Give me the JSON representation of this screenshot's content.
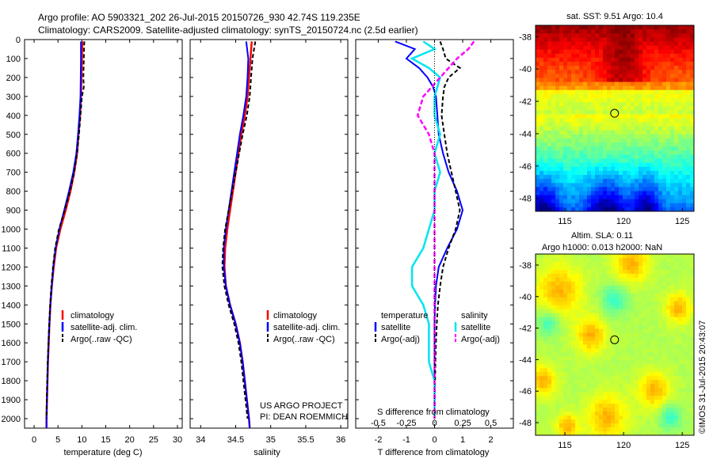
{
  "title": {
    "line1": "Argo profile: AO 5903321_202 26-Jul-2015 20150726_930 42.74S 119.235E",
    "line2": "Climatology: CARS2009. Satellite-adjusted climatology: synTS_20150724.nc (2.5d earlier)"
  },
  "credit_vertical": "©IMOS 31-Jul-2015 20:43:07",
  "project": {
    "line1": "US ARGO PROJECT",
    "line2": "PI: DEAN ROEMMICH"
  },
  "colors": {
    "clim": "#ff0000",
    "sat": "#0000ff",
    "argo": "#000000",
    "sal_sat": "#00e5ee",
    "sal_argo": "#ff00ff"
  },
  "chart_data": [
    {
      "type": "line",
      "xlabel": "temperature (deg C)",
      "ylim": [
        2050,
        0
      ],
      "xlim": [
        -2,
        31
      ],
      "xticks": [
        "0",
        "5",
        "10",
        "15",
        "20",
        "25",
        "30"
      ],
      "yticks": [
        "0",
        "100",
        "200",
        "300",
        "400",
        "500",
        "600",
        "700",
        "800",
        "900",
        "1000",
        "1100",
        "1200",
        "1300",
        "1400",
        "1500",
        "1600",
        "1700",
        "1800",
        "1900",
        "2000"
      ],
      "legend": [
        "climatology",
        "satellite-adj. clim.",
        "Argo(..raw -QC)"
      ],
      "series": [
        {
          "name": "climatology",
          "depth": [
            10,
            100,
            200,
            300,
            400,
            500,
            600,
            700,
            800,
            900,
            1000,
            1100,
            1200,
            1300,
            1400,
            1500,
            1600,
            1700,
            1800,
            1900,
            2000,
            2050
          ],
          "values": [
            10.1,
            10.0,
            9.9,
            9.8,
            9.6,
            9.3,
            9.0,
            8.4,
            7.6,
            6.6,
            5.5,
            4.6,
            4.1,
            3.7,
            3.4,
            3.2,
            3.05,
            2.9,
            2.8,
            2.7,
            2.6,
            2.6
          ]
        },
        {
          "name": "satellite-adj. clim.",
          "depth": [
            10,
            100,
            200,
            300,
            400,
            500,
            600,
            700,
            800,
            900,
            1000,
            1100,
            1200,
            1300,
            1400,
            1500,
            1600,
            1700,
            1800,
            1900,
            2000,
            2050
          ],
          "values": [
            9.8,
            9.8,
            9.75,
            9.7,
            9.5,
            9.2,
            8.85,
            8.2,
            7.3,
            6.3,
            5.3,
            4.5,
            4.0,
            3.7,
            3.4,
            3.2,
            3.0,
            2.9,
            2.8,
            2.7,
            2.6,
            2.6
          ]
        },
        {
          "name": "Argo(..raw -QC)",
          "depth": [
            10,
            100,
            200,
            250,
            300,
            400,
            500,
            600,
            700,
            800,
            900,
            1000,
            1100,
            1200,
            1300,
            1400,
            1500,
            1600,
            1700,
            1800,
            1900,
            2000
          ],
          "values": [
            10.5,
            10.4,
            10.3,
            10.4,
            10.0,
            9.7,
            9.4,
            9.0,
            8.4,
            7.5,
            6.4,
            5.2,
            4.4,
            3.95,
            3.6,
            3.35,
            3.15,
            3.0,
            2.85,
            2.75,
            2.65,
            2.6
          ]
        }
      ]
    },
    {
      "type": "line",
      "xlabel": "salinity",
      "ylim": [
        2050,
        0
      ],
      "xlim": [
        33.85,
        36.1
      ],
      "xticks": [
        "34",
        "34.5",
        "35",
        "35.5",
        "36"
      ],
      "legend": [
        "climatology",
        "satellite-adj. clim.",
        "Argo(..raw -QC)"
      ],
      "series": [
        {
          "name": "climatology",
          "depth": [
            10,
            100,
            200,
            300,
            400,
            500,
            600,
            700,
            800,
            900,
            1000,
            1100,
            1200,
            1300,
            1400,
            1500,
            1600,
            1700,
            1800,
            1900,
            2000,
            2050
          ],
          "values": [
            34.73,
            34.71,
            34.69,
            34.67,
            34.63,
            34.58,
            34.54,
            34.5,
            34.46,
            34.42,
            34.38,
            34.35,
            34.34,
            34.36,
            34.42,
            34.5,
            34.56,
            34.6,
            34.63,
            34.66,
            34.69,
            34.7
          ]
        },
        {
          "name": "satellite-adj. clim.",
          "depth": [
            10,
            100,
            200,
            300,
            400,
            500,
            600,
            700,
            800,
            900,
            1000,
            1100,
            1200,
            1300,
            1400,
            1500,
            1600,
            1700,
            1800,
            1900,
            2000,
            2050
          ],
          "values": [
            34.65,
            34.68,
            34.67,
            34.65,
            34.61,
            34.56,
            34.52,
            34.48,
            34.44,
            34.4,
            34.36,
            34.33,
            34.33,
            34.36,
            34.42,
            34.5,
            34.56,
            34.6,
            34.63,
            34.66,
            34.69,
            34.7
          ]
        },
        {
          "name": "Argo(..raw -QC)",
          "depth": [
            10,
            100,
            200,
            300,
            400,
            500,
            600,
            700,
            800,
            900,
            1000,
            1100,
            1200,
            1300,
            1400,
            1500,
            1600,
            1700,
            1800,
            1900,
            2000
          ],
          "values": [
            34.78,
            34.74,
            34.72,
            34.7,
            34.66,
            34.6,
            34.55,
            34.5,
            34.45,
            34.4,
            34.35,
            34.32,
            34.31,
            34.34,
            34.4,
            34.48,
            34.54,
            34.58,
            34.61,
            34.64,
            34.67
          ]
        }
      ]
    },
    {
      "type": "line",
      "xlabel": "T difference from climatology",
      "xlabel_top": "S difference from climatology",
      "ylim": [
        2050,
        0
      ],
      "xlim": [
        -2.8,
        2.8
      ],
      "xticks": [
        "-2",
        "-1",
        "0",
        "1",
        "2"
      ],
      "xticks_top": [
        "-0.5",
        "-0.25",
        "0",
        "0.25",
        "0.5"
      ],
      "legend_headers": [
        "temperature",
        "salinity"
      ],
      "legend": [
        "satellite",
        "Argo(-adj)",
        "satellite",
        "Argo(-adj)"
      ],
      "series": [
        {
          "name": "satellite",
          "variable": "temperature",
          "depth": [
            10,
            50,
            100,
            150,
            200,
            250,
            300,
            400,
            500,
            600,
            700,
            800,
            900,
            1000,
            1100,
            1200,
            1300,
            1400,
            1500,
            1600,
            1700,
            1800,
            1900,
            2000
          ],
          "values": [
            -1.4,
            -0.7,
            -1.0,
            -0.55,
            -0.25,
            -0.05,
            0.05,
            0.1,
            0.15,
            0.3,
            0.5,
            0.8,
            1.0,
            0.8,
            0.45,
            0.15,
            0.05,
            0.02,
            0.0,
            0.0,
            0.0,
            0.0,
            0.0,
            0.0
          ]
        },
        {
          "name": "Argo(-adj)",
          "variable": "temperature",
          "depth": [
            10,
            50,
            100,
            150,
            200,
            250,
            300,
            400,
            500,
            600,
            700,
            800,
            900,
            1000,
            1100,
            1200,
            1300,
            1400,
            1500,
            1600,
            1700,
            1800,
            1900,
            2000
          ],
          "values": [
            0.2,
            0.3,
            0.4,
            0.9,
            0.5,
            0.35,
            0.3,
            0.25,
            0.35,
            0.45,
            0.6,
            0.75,
            0.9,
            0.75,
            0.5,
            0.3,
            0.2,
            0.12,
            0.08,
            0.05,
            0.03,
            0.02,
            0.01,
            0.0
          ]
        },
        {
          "name": "satellite",
          "variable": "salinity",
          "depth": [
            10,
            50,
            100,
            150,
            200,
            300,
            400,
            500,
            600,
            700,
            800,
            900,
            1000,
            1100,
            1200,
            1300,
            1400,
            1500,
            1600,
            1700,
            1800,
            1900,
            2000
          ],
          "values": [
            -0.1,
            0.0,
            -0.2,
            -0.05,
            0.05,
            0.0,
            0.0,
            0.05,
            0.0,
            0.05,
            0.0,
            0.0,
            -0.05,
            -0.1,
            -0.2,
            -0.2,
            -0.1,
            -0.05,
            -0.05,
            -0.05,
            0.0,
            0.0,
            0.0
          ]
        },
        {
          "name": "Argo(-adj)",
          "variable": "salinity",
          "depth": [
            10,
            50,
            100,
            200,
            300,
            400,
            500,
            600,
            800,
            1000,
            1200,
            1400,
            1600,
            1800,
            2000
          ],
          "values": [
            0.35,
            0.3,
            0.2,
            0.05,
            -0.1,
            -0.15,
            -0.05,
            0.0,
            0.0,
            0.0,
            0.0,
            0.0,
            0.0,
            0.0,
            0.0
          ]
        }
      ]
    },
    {
      "type": "heatmap",
      "title": "sat. SST: 9.51  Argo: 10.4",
      "xlim": [
        112.5,
        126
      ],
      "ylim": [
        -48.8,
        -37.3
      ],
      "xticks": [
        "115",
        "120",
        "125"
      ],
      "yticks": [
        "-38",
        "-40",
        "-42",
        "-44",
        "-46",
        "-48"
      ],
      "marker": {
        "lon": 119.235,
        "lat": -42.74
      }
    },
    {
      "type": "heatmap",
      "title": "Altim. SLA: 0.11",
      "subtitle": "Argo h1000: 0.013 h2000: NaN",
      "xlim": [
        112.5,
        126
      ],
      "ylim": [
        -48.8,
        -37.3
      ],
      "xticks": [
        "115",
        "120",
        "125"
      ],
      "yticks": [
        "-38",
        "-40",
        "-42",
        "-44",
        "-46",
        "-48"
      ],
      "marker": {
        "lon": 119.235,
        "lat": -42.74
      }
    }
  ]
}
